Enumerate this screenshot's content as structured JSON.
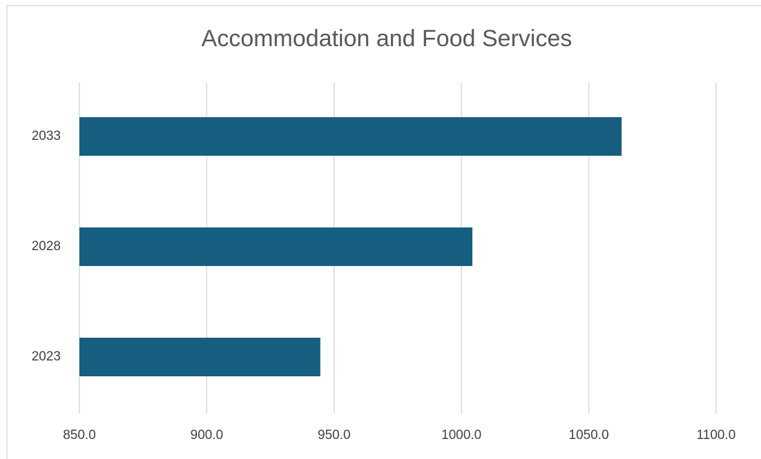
{
  "chart_data": {
    "type": "hbar",
    "title": "Accommodation and Food Services",
    "categories": [
      "2023",
      "2028",
      "2033"
    ],
    "values": [
      944.6,
      1004.3,
      1062.9
    ],
    "color": "#175f80",
    "xlim": [
      850,
      1100
    ],
    "xticks": [
      {
        "value": 850,
        "label": "850.0"
      },
      {
        "value": 900,
        "label": "900.0"
      },
      {
        "value": 950,
        "label": "950.0"
      },
      {
        "value": 1000,
        "label": "1000.0"
      },
      {
        "value": 1050,
        "label": "1050.0"
      },
      {
        "value": 1100,
        "label": "1100.0"
      }
    ],
    "grid": true
  }
}
